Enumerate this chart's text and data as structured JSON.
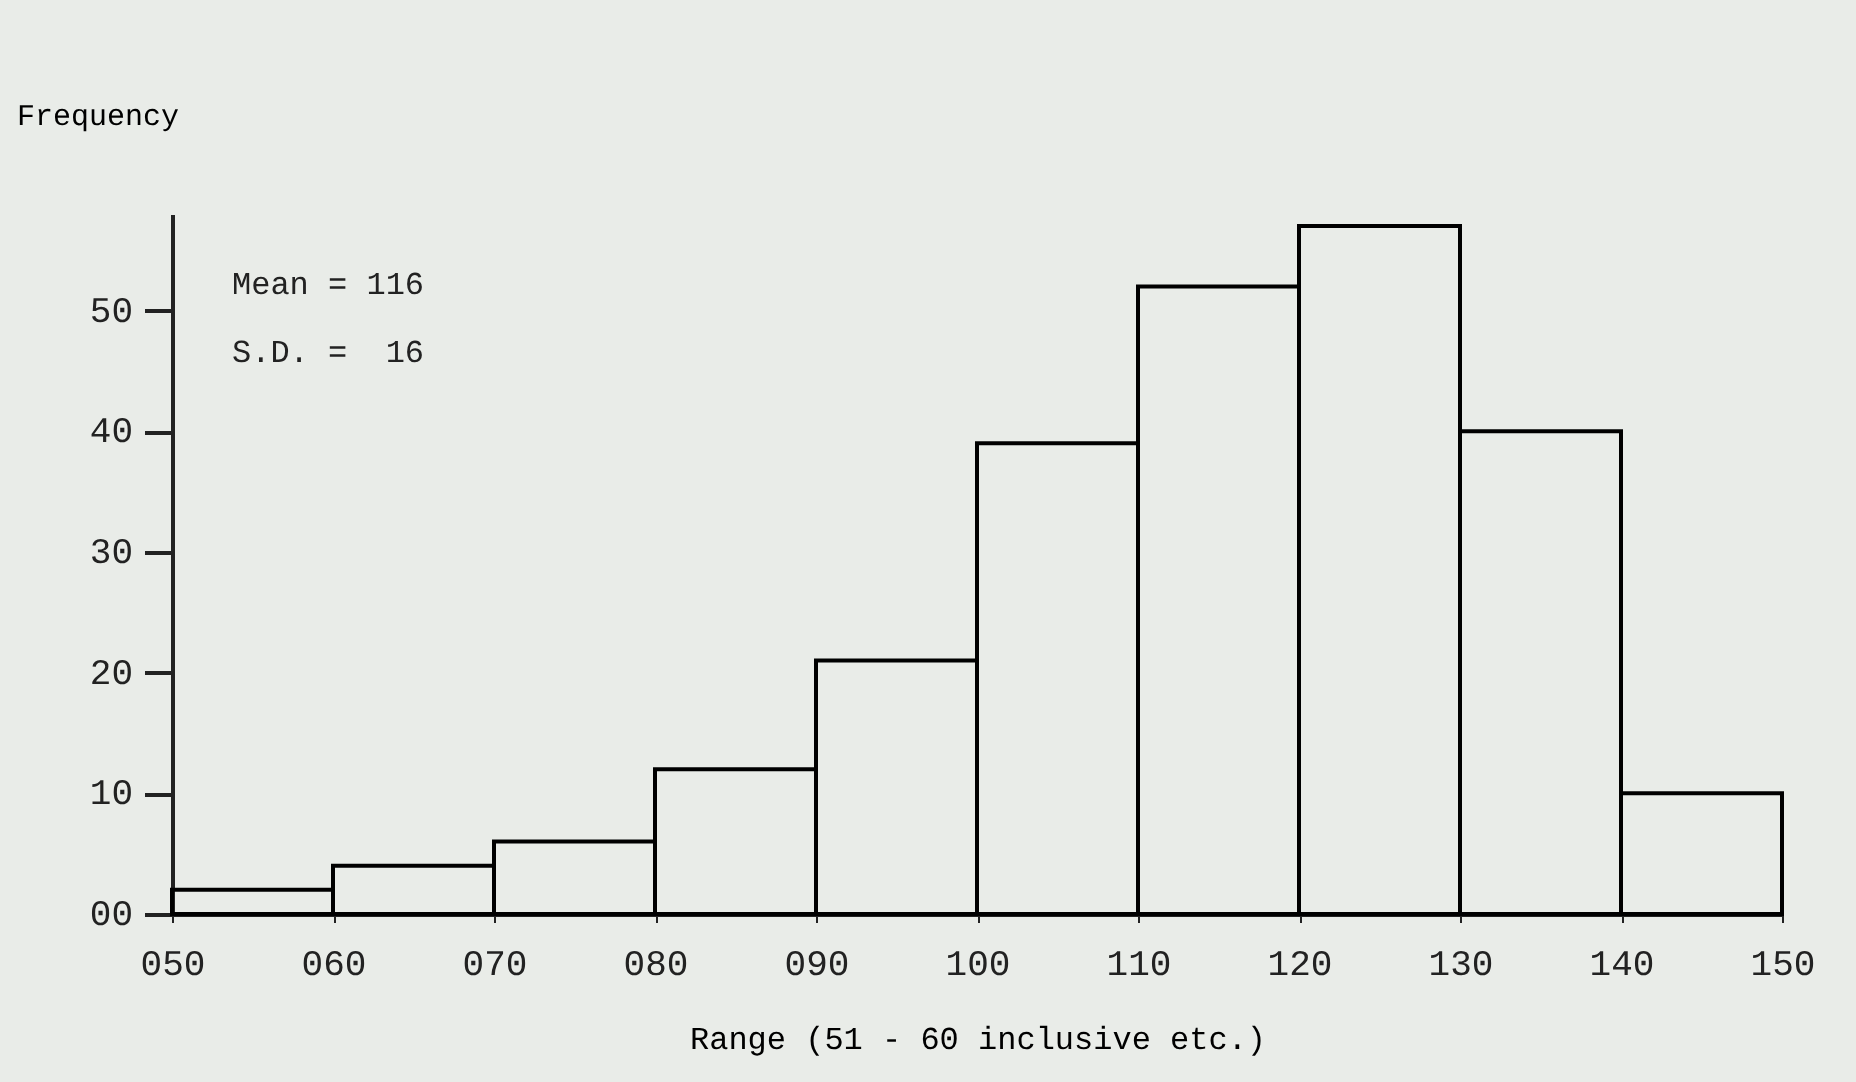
{
  "chart_data": {
    "type": "histogram",
    "xlabel": "Range (51 - 60 inclusive etc.)",
    "ylabel": "Frequency",
    "bins": [
      50,
      60,
      70,
      80,
      90,
      100,
      110,
      120,
      130,
      140,
      150
    ],
    "values": [
      2,
      4,
      6,
      12,
      21,
      39,
      52,
      57,
      40,
      10
    ],
    "color": "#000000",
    "xlim": [
      50,
      150
    ],
    "xticks": [
      {
        "value": 50,
        "label": "050"
      },
      {
        "value": 60,
        "label": "060"
      },
      {
        "value": 70,
        "label": "070"
      },
      {
        "value": 80,
        "label": "080"
      },
      {
        "value": 90,
        "label": "090"
      },
      100,
      110,
      120,
      130,
      140,
      150
    ],
    "ylim": [
      0,
      58
    ],
    "yticks": [
      {
        "value": 0,
        "label": "00"
      },
      10,
      20,
      30,
      40,
      50
    ],
    "annotations": [
      "Mean = 116",
      "S.D. =  16"
    ],
    "grid": false
  }
}
